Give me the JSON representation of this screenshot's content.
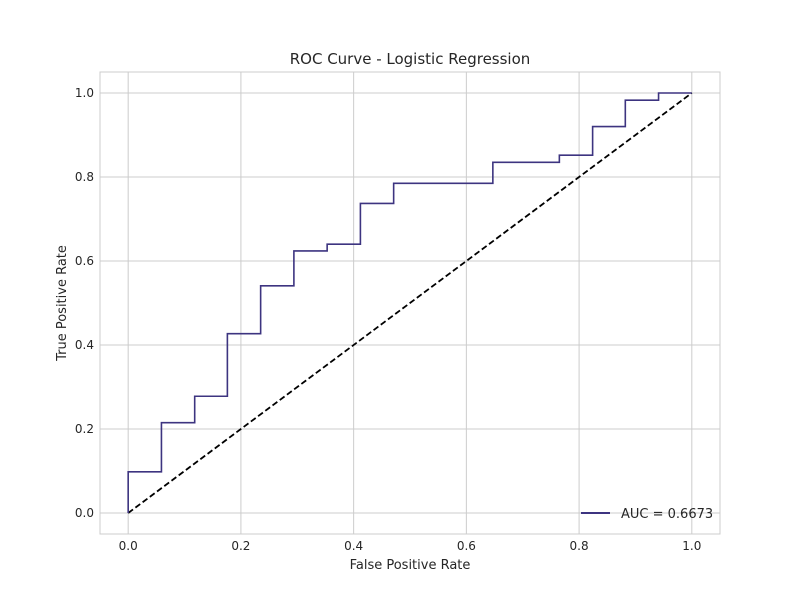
{
  "chart_data": {
    "type": "line",
    "title": "ROC Curve - Logistic Regression",
    "xlabel": "False Positive Rate",
    "ylabel": "True Positive Rate",
    "xlim": [
      -0.05,
      1.05
    ],
    "ylim": [
      -0.05,
      1.05
    ],
    "xticks": [
      "0.0",
      "0.2",
      "0.4",
      "0.6",
      "0.8",
      "1.0"
    ],
    "yticks": [
      "0.0",
      "0.2",
      "0.4",
      "0.6",
      "0.8",
      "1.0"
    ],
    "grid": true,
    "legend_position": "lower-right",
    "series": [
      {
        "name": "AUC = 0.6673",
        "color": "#3d3480",
        "style": "solid",
        "step": true,
        "x": [
          0.0,
          0.0,
          0.059,
          0.059,
          0.118,
          0.118,
          0.176,
          0.176,
          0.235,
          0.235,
          0.294,
          0.294,
          0.353,
          0.353,
          0.412,
          0.412,
          0.471,
          0.471,
          0.647,
          0.647,
          0.765,
          0.765,
          0.824,
          0.824,
          0.882,
          0.882,
          0.941,
          0.941,
          1.0
        ],
        "y": [
          0.0,
          0.098,
          0.098,
          0.215,
          0.215,
          0.278,
          0.278,
          0.427,
          0.427,
          0.541,
          0.541,
          0.624,
          0.624,
          0.64,
          0.64,
          0.737,
          0.737,
          0.785,
          0.785,
          0.835,
          0.835,
          0.852,
          0.852,
          0.92,
          0.92,
          0.983,
          0.983,
          1.0,
          1.0
        ]
      },
      {
        "name": "",
        "color": "#000000",
        "style": "dashed",
        "x": [
          0.0,
          1.0
        ],
        "y": [
          0.0,
          1.0
        ]
      }
    ]
  }
}
